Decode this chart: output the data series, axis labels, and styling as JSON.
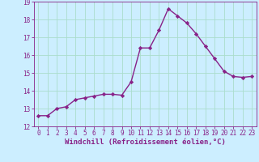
{
  "x": [
    0,
    1,
    2,
    3,
    4,
    5,
    6,
    7,
    8,
    9,
    10,
    11,
    12,
    13,
    14,
    15,
    16,
    17,
    18,
    19,
    20,
    21,
    22,
    23
  ],
  "y": [
    12.6,
    12.6,
    13.0,
    13.1,
    13.5,
    13.6,
    13.7,
    13.8,
    13.8,
    13.75,
    14.5,
    16.4,
    16.4,
    17.4,
    18.6,
    18.2,
    17.8,
    17.2,
    16.5,
    15.8,
    15.1,
    14.8,
    14.75,
    14.8
  ],
  "line_color": "#882288",
  "marker": "D",
  "marker_size": 2.2,
  "line_width": 1.0,
  "bg_color": "#cceeff",
  "grid_color": "#aaddcc",
  "xlabel": "Windchill (Refroidissement éolien,°C)",
  "xlabel_fontsize": 6.5,
  "xlabel_color": "#882288",
  "tick_color": "#882288",
  "tick_fontsize": 5.5,
  "ylim": [
    12,
    19
  ],
  "xlim": [
    -0.5,
    23.5
  ],
  "yticks": [
    12,
    13,
    14,
    15,
    16,
    17,
    18,
    19
  ],
  "xticks": [
    0,
    1,
    2,
    3,
    4,
    5,
    6,
    7,
    8,
    9,
    10,
    11,
    12,
    13,
    14,
    15,
    16,
    17,
    18,
    19,
    20,
    21,
    22,
    23
  ]
}
